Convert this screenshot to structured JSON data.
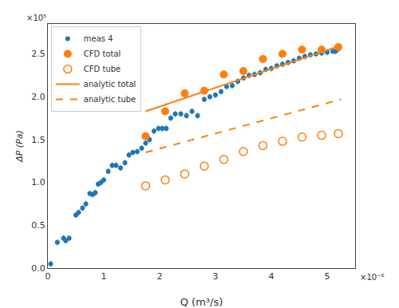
{
  "chart_data": {
    "type": "scatter",
    "xlabel": "Q (m³/s)",
    "ylabel": "ΔP (Pa)",
    "xlim": [
      0,
      5.5
    ],
    "ylim": [
      0,
      2.85
    ],
    "xticks": [
      0,
      1,
      2,
      3,
      4,
      5
    ],
    "yticks": [
      {
        "value": 0,
        "label": "0.0"
      },
      0.5,
      {
        "value": 1,
        "label": "1.0"
      },
      1.5,
      {
        "value": 2,
        "label": "2.0"
      },
      2.5
    ],
    "grid": false,
    "legend": "upper left",
    "annotations": [
      "×10⁵",
      "×10⁻⁶"
    ],
    "series": [
      {
        "name": "meas 4",
        "type": "scatter",
        "marker": "circle",
        "color": "#1f77b4",
        "yerr": 0.035,
        "x": [
          0.05,
          0.17,
          0.28,
          0.32,
          0.38,
          0.5,
          0.55,
          0.62,
          0.68,
          0.75,
          0.8,
          0.85,
          0.9,
          0.95,
          1.0,
          1.08,
          1.15,
          1.22,
          1.3,
          1.38,
          1.45,
          1.52,
          1.6,
          1.68,
          1.75,
          1.82,
          1.9,
          1.98,
          2.05,
          2.12,
          2.2,
          2.28,
          2.38,
          2.48,
          2.58,
          2.68,
          2.8,
          2.9,
          3.0,
          3.1,
          3.2,
          3.3,
          3.4,
          3.5,
          3.6,
          3.7,
          3.8,
          3.9,
          4.0,
          4.1,
          4.2,
          4.3,
          4.4,
          4.5,
          4.6,
          4.7,
          4.8,
          4.9,
          5.0,
          5.1,
          5.15,
          5.18,
          5.2
        ],
        "values": [
          0.05,
          0.3,
          0.35,
          0.32,
          0.35,
          0.62,
          0.65,
          0.7,
          0.75,
          0.87,
          0.86,
          0.88,
          0.98,
          1.0,
          1.03,
          1.13,
          1.2,
          1.2,
          1.17,
          1.23,
          1.32,
          1.35,
          1.36,
          1.4,
          1.46,
          1.5,
          1.6,
          1.63,
          1.63,
          1.63,
          1.75,
          1.8,
          1.8,
          1.78,
          1.83,
          1.78,
          1.97,
          2.0,
          2.02,
          2.06,
          2.12,
          2.13,
          2.18,
          2.22,
          2.25,
          2.26,
          2.28,
          2.32,
          2.33,
          2.36,
          2.38,
          2.4,
          2.42,
          2.45,
          2.47,
          2.49,
          2.5,
          2.51,
          2.52,
          2.53,
          2.53,
          2.55,
          2.56
        ]
      },
      {
        "name": "CFD total",
        "type": "scatter",
        "marker": "circle",
        "color": "#ff7f0e",
        "x": [
          1.75,
          2.1,
          2.45,
          2.8,
          3.15,
          3.5,
          3.85,
          4.2,
          4.55,
          4.9,
          5.2
        ],
        "values": [
          1.54,
          1.83,
          2.04,
          2.07,
          2.26,
          2.3,
          2.44,
          2.5,
          2.55,
          2.55,
          2.58
        ]
      },
      {
        "name": "CFD tube",
        "type": "scatter",
        "marker": "circle-open",
        "color": "#ff7f0e",
        "x": [
          1.75,
          2.1,
          2.45,
          2.8,
          3.15,
          3.5,
          3.85,
          4.2,
          4.55,
          4.9,
          5.2
        ],
        "values": [
          0.96,
          1.03,
          1.1,
          1.19,
          1.27,
          1.36,
          1.43,
          1.48,
          1.53,
          1.55,
          1.57
        ]
      },
      {
        "name": "analytic total",
        "type": "line",
        "line_style": "solid",
        "color": "#ff7f0e",
        "x": [
          1.75,
          5.25
        ],
        "values": [
          1.83,
          2.6
        ]
      },
      {
        "name": "analytic tube",
        "type": "line",
        "line_style": "dashed",
        "color": "#ff7f0e",
        "x": [
          1.75,
          5.25
        ],
        "values": [
          1.35,
          1.97
        ]
      }
    ]
  }
}
